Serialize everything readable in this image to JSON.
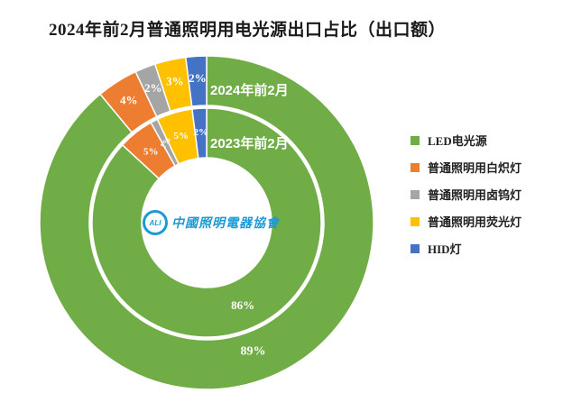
{
  "title": "2024年前2月普通照明用电光源出口占比（出口额）",
  "watermark": {
    "abbr": "ALI",
    "text": "中國照明電器協會"
  },
  "chart_data": {
    "type": "donut",
    "title": "2024年前2月普通照明用电光源出口占比（出口额）",
    "categories": [
      "LED电光源",
      "普通照明用白炽灯",
      "普通照明用卤钨灯",
      "普通照明用荧光灯",
      "HID灯"
    ],
    "series_colors": [
      "#70AD47",
      "#ED7D31",
      "#A5A5A5",
      "#FFC000",
      "#4472C4"
    ],
    "unit": "%",
    "legend_position": "right",
    "rings": [
      {
        "name": "2024年前2月",
        "position": "outer",
        "values": [
          89,
          4,
          2,
          3,
          2
        ],
        "labels": [
          "89%",
          "4%",
          "2%",
          "3%",
          "2%"
        ]
      },
      {
        "name": "2023年前2月",
        "position": "inner",
        "values": [
          86,
          5,
          1,
          5,
          2
        ],
        "labels": [
          "86%",
          "5%",
          "1%",
          "5%",
          "2%"
        ]
      }
    ]
  },
  "legend": {
    "items": [
      {
        "label": "LED电光源",
        "color": "#70AD47"
      },
      {
        "label": "普通照明用白炽灯",
        "color": "#ED7D31"
      },
      {
        "label": "普通照明用卤钨灯",
        "color": "#A5A5A5"
      },
      {
        "label": "普通照明用荧光灯",
        "color": "#FFC000"
      },
      {
        "label": "HID灯",
        "color": "#4472C4"
      }
    ]
  }
}
